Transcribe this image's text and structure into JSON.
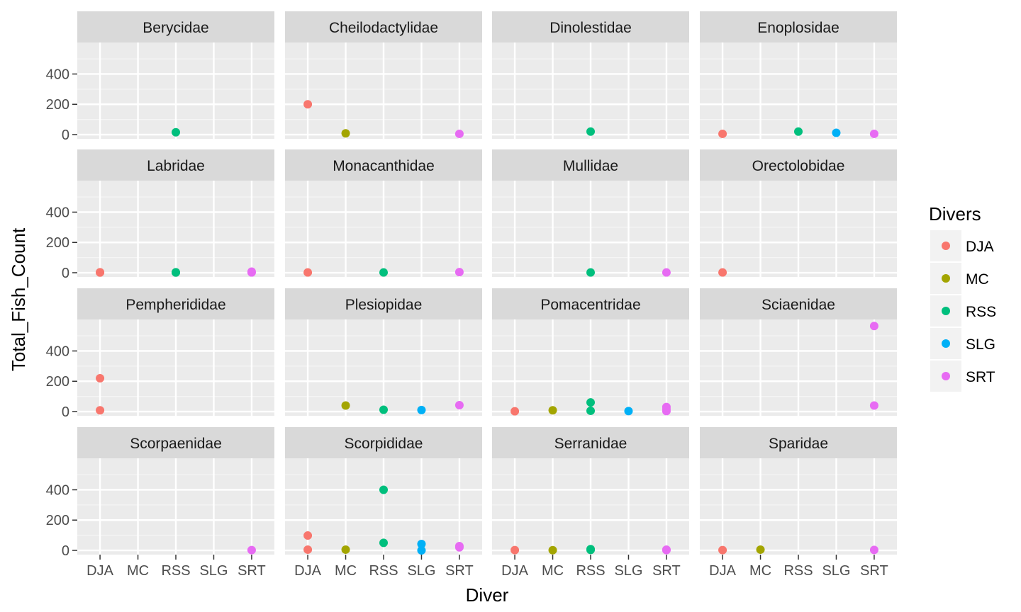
{
  "chart_data": {
    "type": "scatter",
    "faceted": true,
    "xlabel": "Diver",
    "ylabel": "Total_Fish_Count",
    "categories": [
      "DJA",
      "MC",
      "RSS",
      "SLG",
      "SRT"
    ],
    "yticks": [
      0,
      200,
      400
    ],
    "ylim": [
      -28,
      608
    ],
    "grid": true,
    "legend": {
      "title": "Divers",
      "position": "right",
      "entries": [
        {
          "label": "DJA",
          "color": "#F8766D"
        },
        {
          "label": "MC",
          "color": "#A3A500"
        },
        {
          "label": "RSS",
          "color": "#00BF7D"
        },
        {
          "label": "SLG",
          "color": "#00B0F6"
        },
        {
          "label": "SRT",
          "color": "#E76BF3"
        }
      ]
    },
    "panels": [
      {
        "title": "Berycidae",
        "points": [
          [
            "RSS",
            15
          ]
        ]
      },
      {
        "title": "Cheilodactylidae",
        "points": [
          [
            "DJA",
            200
          ],
          [
            "MC",
            8
          ],
          [
            "SRT",
            5
          ]
        ]
      },
      {
        "title": "Dinolestidae",
        "points": [
          [
            "RSS",
            20
          ]
        ]
      },
      {
        "title": "Enoplosidae",
        "points": [
          [
            "DJA",
            5
          ],
          [
            "RSS",
            20
          ],
          [
            "SLG",
            12
          ],
          [
            "SRT",
            5
          ]
        ]
      },
      {
        "title": "Labridae",
        "points": [
          [
            "DJA",
            3
          ],
          [
            "DJA",
            1
          ],
          [
            "RSS",
            3
          ],
          [
            "RSS",
            1
          ],
          [
            "SRT",
            7
          ],
          [
            "SRT",
            2
          ]
        ]
      },
      {
        "title": "Monacanthidae",
        "points": [
          [
            "DJA",
            2
          ],
          [
            "RSS",
            2
          ],
          [
            "SRT",
            4
          ]
        ]
      },
      {
        "title": "Mullidae",
        "points": [
          [
            "RSS",
            2
          ],
          [
            "SRT",
            2
          ]
        ]
      },
      {
        "title": "Orectolobidae",
        "points": [
          [
            "DJA",
            2
          ]
        ]
      },
      {
        "title": "Pempherididae",
        "points": [
          [
            "DJA",
            220
          ],
          [
            "DJA",
            8
          ]
        ]
      },
      {
        "title": "Plesiopidae",
        "points": [
          [
            "MC",
            40
          ],
          [
            "RSS",
            12
          ],
          [
            "SLG",
            10
          ],
          [
            "SRT",
            42
          ]
        ]
      },
      {
        "title": "Pomacentridae",
        "points": [
          [
            "DJA",
            2
          ],
          [
            "MC",
            8
          ],
          [
            "RSS",
            60
          ],
          [
            "RSS",
            5
          ],
          [
            "SLG",
            3
          ],
          [
            "SRT",
            30
          ],
          [
            "SRT",
            15
          ],
          [
            "SRT",
            3
          ]
        ]
      },
      {
        "title": "Sciaenidae",
        "points": [
          [
            "SRT",
            565
          ],
          [
            "SRT",
            40
          ]
        ]
      },
      {
        "title": "Scorpaenidae",
        "points": [
          [
            "SRT",
            2
          ]
        ]
      },
      {
        "title": "Scorpididae",
        "points": [
          [
            "DJA",
            98
          ],
          [
            "DJA",
            5
          ],
          [
            "MC",
            5
          ],
          [
            "RSS",
            400
          ],
          [
            "RSS",
            50
          ],
          [
            "SLG",
            42
          ],
          [
            "SLG",
            0
          ],
          [
            "SRT",
            28
          ],
          [
            "SRT",
            20
          ]
        ]
      },
      {
        "title": "Serranidae",
        "points": [
          [
            "DJA",
            2
          ],
          [
            "MC",
            1
          ],
          [
            "RSS",
            8
          ],
          [
            "RSS",
            3
          ],
          [
            "SRT",
            5
          ],
          [
            "SRT",
            2
          ]
        ]
      },
      {
        "title": "Sparidae",
        "points": [
          [
            "DJA",
            2
          ],
          [
            "MC",
            5
          ],
          [
            "SRT",
            3
          ]
        ]
      }
    ]
  }
}
